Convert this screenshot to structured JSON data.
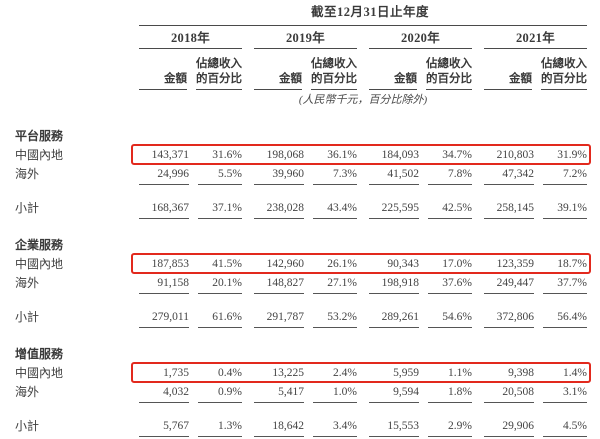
{
  "header": {
    "title": "截至12月31日止年度",
    "years": [
      "2018年",
      "2019年",
      "2020年",
      "2021年"
    ],
    "amount_label": "金額",
    "pct_label_line1": "佔總收入",
    "pct_label_line2": "的百分比",
    "note": "(人民幣千元，百分比除外)"
  },
  "sections": [
    {
      "name": "平台服務",
      "rows": [
        {
          "label": "中國內地",
          "highlight": true,
          "values": [
            "143,371",
            "31.6%",
            "198,068",
            "36.1%",
            "184,093",
            "34.7%",
            "210,803",
            "31.9%"
          ]
        },
        {
          "label": "海外",
          "underline": true,
          "values": [
            "24,996",
            "5.5%",
            "39,960",
            "7.3%",
            "41,502",
            "7.8%",
            "47,342",
            "7.2%"
          ]
        },
        {
          "label": "小計",
          "subtotal": true,
          "underline": true,
          "values": [
            "168,367",
            "37.1%",
            "238,028",
            "43.4%",
            "225,595",
            "42.5%",
            "258,145",
            "39.1%"
          ]
        }
      ]
    },
    {
      "name": "企業服務",
      "rows": [
        {
          "label": "中國內地",
          "highlight": true,
          "values": [
            "187,853",
            "41.5%",
            "142,960",
            "26.1%",
            "90,343",
            "17.0%",
            "123,359",
            "18.7%"
          ]
        },
        {
          "label": "海外",
          "underline": true,
          "values": [
            "91,158",
            "20.1%",
            "148,827",
            "27.1%",
            "198,918",
            "37.6%",
            "249,447",
            "37.7%"
          ]
        },
        {
          "label": "小計",
          "subtotal": true,
          "underline": true,
          "values": [
            "279,011",
            "61.6%",
            "291,787",
            "53.2%",
            "289,261",
            "54.6%",
            "372,806",
            "56.4%"
          ]
        }
      ]
    },
    {
      "name": "增值服務",
      "rows": [
        {
          "label": "中國內地",
          "highlight": true,
          "values": [
            "1,735",
            "0.4%",
            "13,225",
            "2.4%",
            "5,959",
            "1.1%",
            "9,398",
            "1.4%"
          ]
        },
        {
          "label": "海外",
          "underline": true,
          "values": [
            "4,032",
            "0.9%",
            "5,417",
            "1.0%",
            "9,594",
            "1.8%",
            "20,508",
            "3.1%"
          ]
        },
        {
          "label": "小計",
          "subtotal": true,
          "underline": true,
          "values": [
            "5,767",
            "1.3%",
            "18,642",
            "3.4%",
            "15,553",
            "2.9%",
            "29,906",
            "4.5%"
          ]
        }
      ]
    }
  ],
  "colors": {
    "highlight_border": "#e2291d",
    "text": "#404040",
    "rule_line": "#4a4a4a",
    "background": "#ffffff"
  }
}
